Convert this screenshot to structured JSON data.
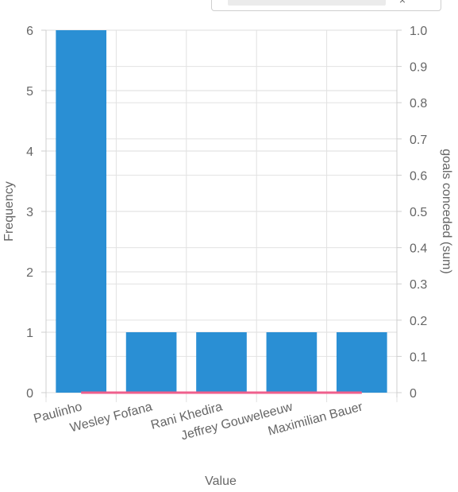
{
  "chart_data": {
    "type": "bar",
    "categories": [
      "Paulinho",
      "Wesley Fofana",
      "Rani Khedira",
      "Jeffrey Gouweleeuw",
      "Maximilian Bauer"
    ],
    "series": [
      {
        "values": [
          6,
          1,
          1,
          1,
          1
        ],
        "color": "#2a8fd4",
        "axis": "left"
      },
      {
        "type": "line",
        "values": [
          0,
          0,
          0,
          0,
          0
        ],
        "color": "#ef5f8c",
        "axis": "right"
      }
    ],
    "xlabel": "Value",
    "ylabel": "Frequency",
    "y2label": "goals conceded (sum)",
    "ylim": [
      0,
      6
    ],
    "y2lim": [
      0,
      1
    ],
    "yticks": [
      "0",
      "1",
      "2",
      "3",
      "4",
      "5",
      "6"
    ],
    "y2ticks": [
      "0",
      "0.1",
      "0.2",
      "0.3",
      "0.4",
      "0.5",
      "0.6",
      "0.7",
      "0.8",
      "0.9",
      "1.0"
    ],
    "grid": true,
    "legend": "none"
  },
  "controls": {
    "dropdown_icon": "close-icon",
    "close_glyph": "×"
  }
}
